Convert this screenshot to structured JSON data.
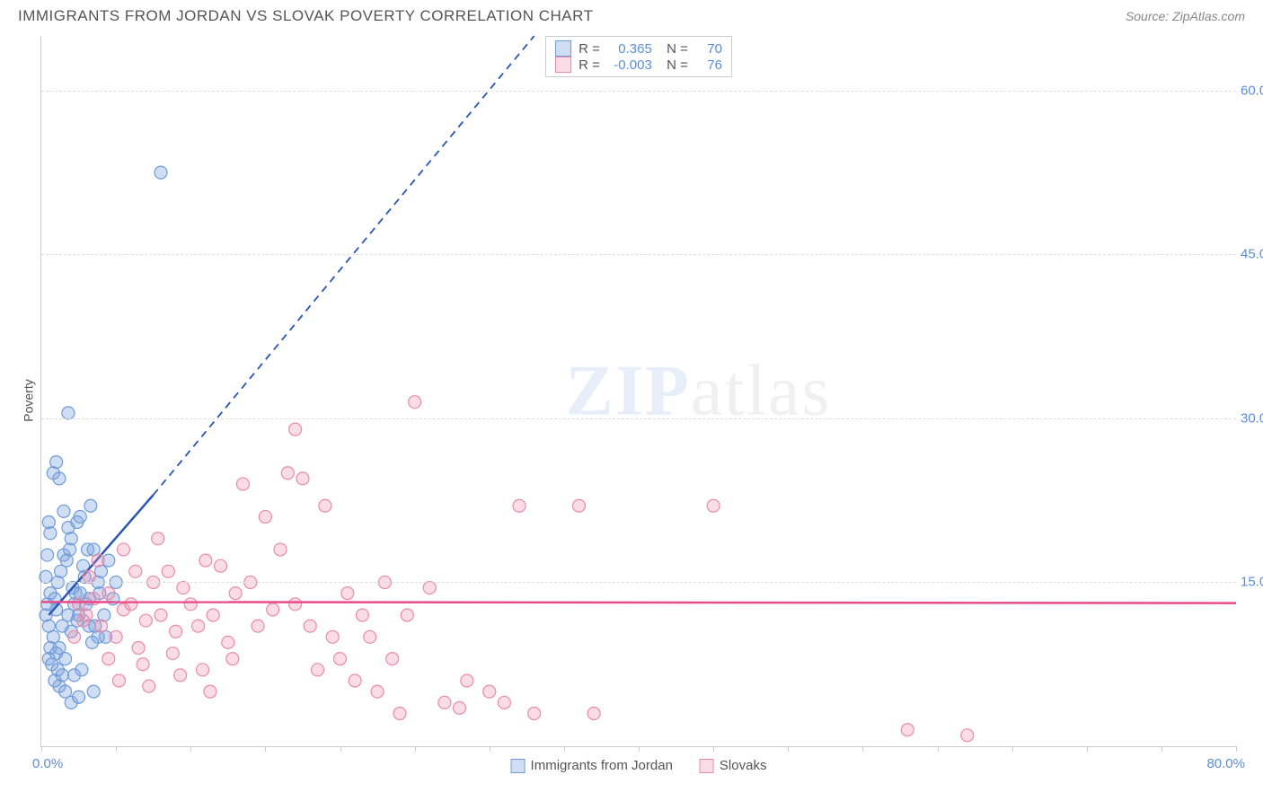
{
  "header": {
    "title": "IMMIGRANTS FROM JORDAN VS SLOVAK POVERTY CORRELATION CHART",
    "source_prefix": "Source: ",
    "source_link": "ZipAtlas.com"
  },
  "chart": {
    "type": "scatter",
    "ylabel": "Poverty",
    "xlim": [
      0,
      80
    ],
    "ylim": [
      0,
      65
    ],
    "x_min_label": "0.0%",
    "x_max_label": "80.0%",
    "x_tick_positions": [
      0,
      5,
      10,
      15,
      20,
      25,
      30,
      35,
      40,
      45,
      50,
      55,
      60,
      65,
      70,
      75,
      80
    ],
    "y_ticks": [
      {
        "v": 15,
        "label": "15.0%"
      },
      {
        "v": 30,
        "label": "30.0%"
      },
      {
        "v": 45,
        "label": "45.0%"
      },
      {
        "v": 60,
        "label": "60.0%"
      }
    ],
    "grid_color": "#dddddd",
    "background_color": "#ffffff",
    "watermark": "ZIPatlas",
    "series": [
      {
        "id": "jordan",
        "label": "Immigrants from Jordan",
        "fill": "rgba(120,160,220,0.35)",
        "stroke": "#6f9bd8",
        "line_color": "#2a55b5",
        "marker_radius": 7,
        "R": "0.365",
        "N": "70",
        "trend_solid": [
          [
            0.5,
            12
          ],
          [
            7.5,
            23
          ]
        ],
        "trend_dash": [
          [
            7.5,
            23
          ],
          [
            33,
            65
          ]
        ],
        "points": [
          [
            0.3,
            12
          ],
          [
            0.4,
            13
          ],
          [
            0.5,
            11
          ],
          [
            0.6,
            14
          ],
          [
            0.8,
            10
          ],
          [
            0.9,
            13.5
          ],
          [
            1.0,
            12.5
          ],
          [
            1.1,
            15
          ],
          [
            1.2,
            9
          ],
          [
            1.3,
            16
          ],
          [
            1.4,
            11
          ],
          [
            1.5,
            17.5
          ],
          [
            1.6,
            8
          ],
          [
            1.7,
            17
          ],
          [
            1.8,
            12
          ],
          [
            1.9,
            18
          ],
          [
            2.0,
            10.5
          ],
          [
            2.1,
            14.5
          ],
          [
            2.2,
            6.5
          ],
          [
            2.3,
            14
          ],
          [
            2.4,
            20.5
          ],
          [
            2.5,
            12
          ],
          [
            2.6,
            21
          ],
          [
            2.7,
            7
          ],
          [
            2.8,
            16.5
          ],
          [
            3.0,
            13
          ],
          [
            3.1,
            18
          ],
          [
            3.2,
            11
          ],
          [
            3.3,
            22
          ],
          [
            3.4,
            9.5
          ],
          [
            0.8,
            25
          ],
          [
            1.0,
            26
          ],
          [
            1.2,
            24.5
          ],
          [
            1.5,
            21.5
          ],
          [
            1.8,
            20
          ],
          [
            2.0,
            19
          ],
          [
            3.5,
            5
          ],
          [
            2.0,
            4
          ],
          [
            1.2,
            5.5
          ],
          [
            2.5,
            4.5
          ],
          [
            3.8,
            15
          ],
          [
            4.0,
            16
          ],
          [
            4.2,
            12
          ],
          [
            4.5,
            17
          ],
          [
            4.8,
            13.5
          ],
          [
            5.0,
            15
          ],
          [
            3.5,
            18
          ],
          [
            3.8,
            10
          ],
          [
            1.8,
            30.5
          ],
          [
            8.0,
            52.5
          ],
          [
            0.5,
            8
          ],
          [
            0.6,
            9
          ],
          [
            0.7,
            7.5
          ],
          [
            0.9,
            6
          ],
          [
            1.0,
            8.5
          ],
          [
            1.1,
            7
          ],
          [
            1.4,
            6.5
          ],
          [
            1.6,
            5
          ],
          [
            2.2,
            13
          ],
          [
            2.4,
            11.5
          ],
          [
            2.6,
            14
          ],
          [
            2.9,
            15.5
          ],
          [
            3.2,
            13.5
          ],
          [
            3.6,
            11
          ],
          [
            3.9,
            14
          ],
          [
            4.3,
            10
          ],
          [
            0.4,
            17.5
          ],
          [
            0.6,
            19.5
          ],
          [
            0.3,
            15.5
          ],
          [
            0.5,
            20.5
          ]
        ]
      },
      {
        "id": "slovak",
        "label": "Slovaks",
        "fill": "rgba(235,140,170,0.3)",
        "stroke": "#e98bab",
        "line_color": "#e74b8a",
        "marker_radius": 7,
        "R": "-0.003",
        "N": "76",
        "trend_solid": [
          [
            0,
            13.2
          ],
          [
            80,
            13.1
          ]
        ],
        "trend_dash": null,
        "points": [
          [
            3,
            12
          ],
          [
            3.5,
            13.5
          ],
          [
            4,
            11
          ],
          [
            4.5,
            14
          ],
          [
            5,
            10
          ],
          [
            5.5,
            12.5
          ],
          [
            6,
            13
          ],
          [
            6.5,
            9
          ],
          [
            7,
            11.5
          ],
          [
            7.5,
            15
          ],
          [
            8,
            12
          ],
          [
            8.5,
            16
          ],
          [
            9,
            10.5
          ],
          [
            9.5,
            14.5
          ],
          [
            10,
            13
          ],
          [
            10.5,
            11
          ],
          [
            11,
            17
          ],
          [
            11.5,
            12
          ],
          [
            12,
            16.5
          ],
          [
            12.5,
            9.5
          ],
          [
            13,
            14
          ],
          [
            13.5,
            24
          ],
          [
            14,
            15
          ],
          [
            14.5,
            11
          ],
          [
            15,
            21
          ],
          [
            15.5,
            12.5
          ],
          [
            16,
            18
          ],
          [
            16.5,
            25
          ],
          [
            17,
            13
          ],
          [
            17.5,
            24.5
          ],
          [
            17,
            29
          ],
          [
            18,
            11
          ],
          [
            18.5,
            7
          ],
          [
            19,
            22
          ],
          [
            19.5,
            10
          ],
          [
            20,
            8
          ],
          [
            20.5,
            14
          ],
          [
            21,
            6
          ],
          [
            21.5,
            12
          ],
          [
            22,
            10
          ],
          [
            22.5,
            5
          ],
          [
            23,
            15
          ],
          [
            23.5,
            8
          ],
          [
            24,
            3
          ],
          [
            24.5,
            12
          ],
          [
            25,
            31.5
          ],
          [
            26,
            14.5
          ],
          [
            27,
            4
          ],
          [
            28,
            3.5
          ],
          [
            28.5,
            6
          ],
          [
            30,
            5
          ],
          [
            31,
            4
          ],
          [
            32,
            22
          ],
          [
            33,
            3
          ],
          [
            36,
            22
          ],
          [
            37,
            3
          ],
          [
            45,
            22
          ],
          [
            58,
            1.5
          ],
          [
            62,
            1
          ],
          [
            4.5,
            8
          ],
          [
            5.2,
            6
          ],
          [
            6.8,
            7.5
          ],
          [
            7.2,
            5.5
          ],
          [
            8.8,
            8.5
          ],
          [
            9.3,
            6.5
          ],
          [
            10.8,
            7
          ],
          [
            11.3,
            5
          ],
          [
            12.8,
            8
          ],
          [
            3.2,
            15.5
          ],
          [
            3.8,
            17
          ],
          [
            5.5,
            18
          ],
          [
            6.3,
            16
          ],
          [
            7.8,
            19
          ],
          [
            2.5,
            13
          ],
          [
            2.8,
            11.5
          ],
          [
            2.2,
            10
          ]
        ]
      }
    ],
    "x_legend": [
      {
        "fill": "rgba(120,160,220,0.35)",
        "stroke": "#6f9bd8",
        "label": "Immigrants from Jordan"
      },
      {
        "fill": "rgba(235,140,170,0.3)",
        "stroke": "#e98bab",
        "label": "Slovaks"
      }
    ]
  }
}
